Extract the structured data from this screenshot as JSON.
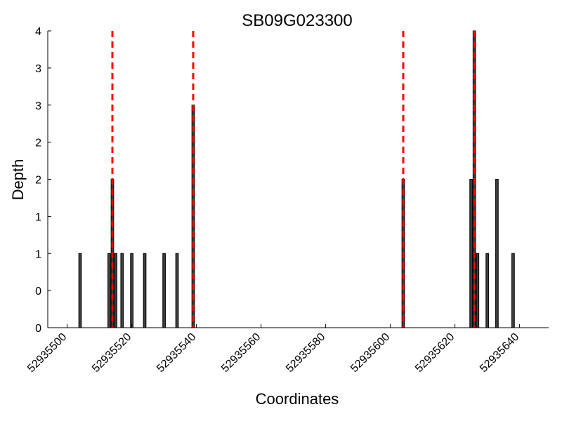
{
  "chart_data": {
    "type": "bar",
    "title": "SB09G023300",
    "xlabel": "Coordinates",
    "ylabel": "Depth",
    "xlim": [
      52935494,
      52935649
    ],
    "ylim": [
      0,
      4
    ],
    "x_ticks": [
      {
        "value": 52935500,
        "label": "52935500"
      },
      {
        "value": 52935520,
        "label": "52935520"
      },
      {
        "value": 52935540,
        "label": "52935540"
      },
      {
        "value": 52935560,
        "label": "52935560"
      },
      {
        "value": 52935580,
        "label": "52935580"
      },
      {
        "value": 52935600,
        "label": "52935600"
      },
      {
        "value": 52935620,
        "label": "52935620"
      },
      {
        "value": 52935640,
        "label": "52935640"
      }
    ],
    "y_ticks": [
      {
        "value": 0,
        "label": "0"
      },
      {
        "value": 0.5,
        "label": "0"
      },
      {
        "value": 1,
        "label": "1"
      },
      {
        "value": 1.5,
        "label": "1"
      },
      {
        "value": 2,
        "label": "2"
      },
      {
        "value": 2.5,
        "label": "2"
      },
      {
        "value": 3,
        "label": "3"
      },
      {
        "value": 3.5,
        "label": "3"
      },
      {
        "value": 4,
        "label": "4"
      }
    ],
    "bar_width": 0.8,
    "bars": [
      {
        "x": 52935504,
        "y": 1
      },
      {
        "x": 52935513,
        "y": 1
      },
      {
        "x": 52935514,
        "y": 2
      },
      {
        "x": 52935515,
        "y": 1
      },
      {
        "x": 52935517,
        "y": 1
      },
      {
        "x": 52935520,
        "y": 1
      },
      {
        "x": 52935524,
        "y": 1
      },
      {
        "x": 52935530,
        "y": 1
      },
      {
        "x": 52935534,
        "y": 1
      },
      {
        "x": 52935539,
        "y": 3
      },
      {
        "x": 52935604,
        "y": 2
      },
      {
        "x": 52935625,
        "y": 2
      },
      {
        "x": 52935626,
        "y": 4
      },
      {
        "x": 52935627,
        "y": 1
      },
      {
        "x": 52935630,
        "y": 1
      },
      {
        "x": 52935633,
        "y": 2
      },
      {
        "x": 52935638,
        "y": 1
      }
    ],
    "markers": [
      52935514,
      52935539,
      52935604,
      52935626
    ],
    "colors": {
      "bar": "#404040",
      "marker": "#ff0000"
    }
  }
}
